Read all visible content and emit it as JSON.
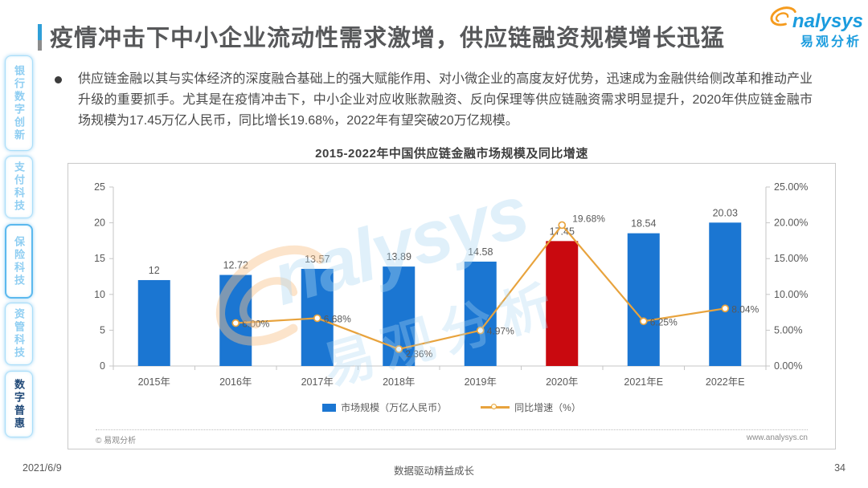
{
  "sidebar": {
    "tabs": [
      {
        "label": "银行数字创新",
        "active": false,
        "highlighted": false
      },
      {
        "label": "支付科技",
        "active": false,
        "highlighted": false
      },
      {
        "label": "保险科技",
        "active": false,
        "highlighted": true
      },
      {
        "label": "资管科技",
        "active": false,
        "highlighted": false
      },
      {
        "label": "数字普惠",
        "active": true,
        "highlighted": false
      }
    ]
  },
  "header": {
    "title": "疫情冲击下中小企业流动性需求激增，供应链融资规模增长迅猛",
    "logo": {
      "brand": "nalysys",
      "brand_cn": "易观分析"
    }
  },
  "body": {
    "bullet_text": "供应链金融以其与实体经济的深度融合基础上的强大赋能作用、对小微企业的高度友好优势，迅速成为金融供给侧改革和推动产业升级的重要抓手。尤其是在疫情冲击下，中小企业对应收账款融资、反向保理等供应链融资需求明显提升，2020年供应链金融市场规模为17.45万亿人民币，同比增长19.68%，2022年有望突破20万亿规模。"
  },
  "chart_data": {
    "type": "bar+line",
    "title": "2015-2022年中国供应链金融市场规模及同比增速",
    "categories": [
      "2015年",
      "2016年",
      "2017年",
      "2018年",
      "2019年",
      "2020年",
      "2021年E",
      "2022年E"
    ],
    "series": [
      {
        "name": "市场规模（万亿人民币）",
        "type": "bar",
        "values": [
          12,
          12.72,
          13.57,
          13.89,
          14.58,
          17.45,
          18.54,
          20.03
        ],
        "labels": [
          "12",
          "12.72",
          "13.57",
          "13.89",
          "14.58",
          "17.45",
          "18.54",
          "20.03"
        ]
      },
      {
        "name": "同比增速（%）",
        "type": "line",
        "values": [
          null,
          6.0,
          6.68,
          2.36,
          4.97,
          19.68,
          6.25,
          8.04
        ],
        "labels": [
          null,
          "6.00%",
          "6.68%",
          "2.36%",
          "4.97%",
          "19.68%",
          "6.25%",
          "8.04%"
        ]
      }
    ],
    "left_axis": {
      "min": 0,
      "max": 25,
      "step": 5,
      "ticks": [
        "0",
        "5",
        "10",
        "15",
        "20",
        "25"
      ]
    },
    "right_axis": {
      "min": 0,
      "max": 25,
      "step": 5,
      "ticks": [
        "0.00%",
        "5.00%",
        "10.00%",
        "15.00%",
        "20.00%",
        "25.00%"
      ]
    },
    "highlight_index": 5,
    "legend_position": "bottom",
    "grid": false,
    "colors": {
      "bar": "#1b76d2",
      "bar_highlight": "#c9090f",
      "line": "#e8a33d"
    }
  },
  "chart_footer": {
    "copyright": "© 易观分析",
    "website": "www.analysys.cn"
  },
  "footer": {
    "date": "2021/6/9",
    "slogan": "数据驱动精益成长",
    "page": "34"
  }
}
